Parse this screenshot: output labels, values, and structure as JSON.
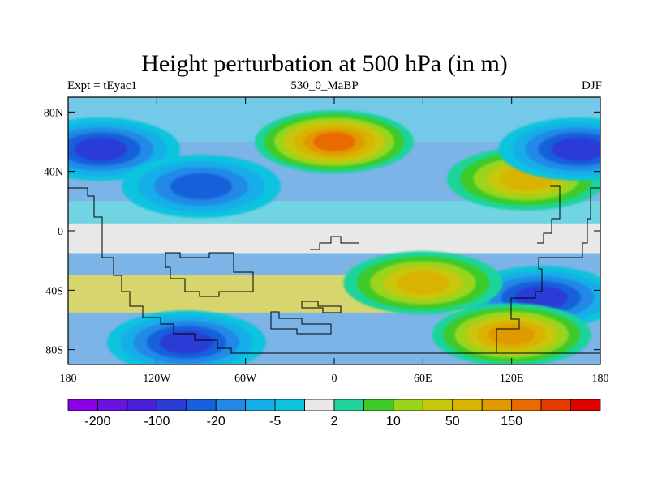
{
  "title": "Height perturbation at 500 hPa (in m)",
  "subtitle_left": "Expt = tEyac1",
  "subtitle_center": "530_0_MaBP",
  "subtitle_right": "DJF",
  "chart_data": {
    "type": "heatmap",
    "title": "Height perturbation at 500 hPa (in m)",
    "variable": "500 hPa height perturbation",
    "units": "m",
    "x_range": [
      -180,
      180
    ],
    "y_range": [
      -90,
      90
    ],
    "x_ticks": [
      {
        "value": -180,
        "label": "180"
      },
      {
        "value": -120,
        "label": "120W"
      },
      {
        "value": -60,
        "label": "60W"
      },
      {
        "value": 0,
        "label": "0"
      },
      {
        "value": 60,
        "label": "60E"
      },
      {
        "value": 120,
        "label": "120E"
      },
      {
        "value": 180,
        "label": "180"
      }
    ],
    "y_ticks": [
      {
        "value": 80,
        "label": "80N"
      },
      {
        "value": 40,
        "label": "40N"
      },
      {
        "value": 0,
        "label": "0"
      },
      {
        "value": -40,
        "label": "40S"
      },
      {
        "value": -80,
        "label": "80S"
      }
    ],
    "colorbar": {
      "colors": [
        "#8a00e6",
        "#6a12e0",
        "#4a1fd8",
        "#2a3bd6",
        "#1560db",
        "#2389e6",
        "#15aee8",
        "#0cc3dd",
        "#e8e8e8",
        "#1fd39a",
        "#3ecb2a",
        "#9ad41a",
        "#c8c60a",
        "#d8b400",
        "#e09a00",
        "#e86a00",
        "#e63a00",
        "#e00000"
      ],
      "labeled_ticks": [
        {
          "index": 1,
          "label": "-200"
        },
        {
          "index": 3,
          "label": "-100"
        },
        {
          "index": 5,
          "label": "-20"
        },
        {
          "index": 7,
          "label": "-5"
        },
        {
          "index": 9,
          "label": "2"
        },
        {
          "index": 11,
          "label": "10"
        },
        {
          "index": 13,
          "label": "50"
        },
        {
          "index": 15,
          "label": "150"
        }
      ]
    },
    "features": [
      {
        "lon": 0,
        "lat": 60,
        "sign": "positive",
        "peak_level": 15,
        "description": "strong ridge over North Atlantic / Europe"
      },
      {
        "lon": 130,
        "lat": 35,
        "sign": "positive",
        "peak_level": 13
      },
      {
        "lon": -158,
        "lat": 55,
        "sign": "negative",
        "peak_level": 3
      },
      {
        "lon": 165,
        "lat": 55,
        "sign": "negative",
        "peak_level": 3
      },
      {
        "lon": -90,
        "lat": 30,
        "sign": "negative",
        "peak_level": 4
      },
      {
        "lon": -100,
        "lat": -75,
        "sign": "negative",
        "peak_level": 3
      },
      {
        "lon": 140,
        "lat": -45,
        "sign": "negative",
        "peak_level": 3
      },
      {
        "lon": 60,
        "lat": -35,
        "sign": "positive",
        "peak_level": 13
      },
      {
        "lon": 120,
        "lat": -70,
        "sign": "positive",
        "peak_level": 14
      }
    ]
  }
}
